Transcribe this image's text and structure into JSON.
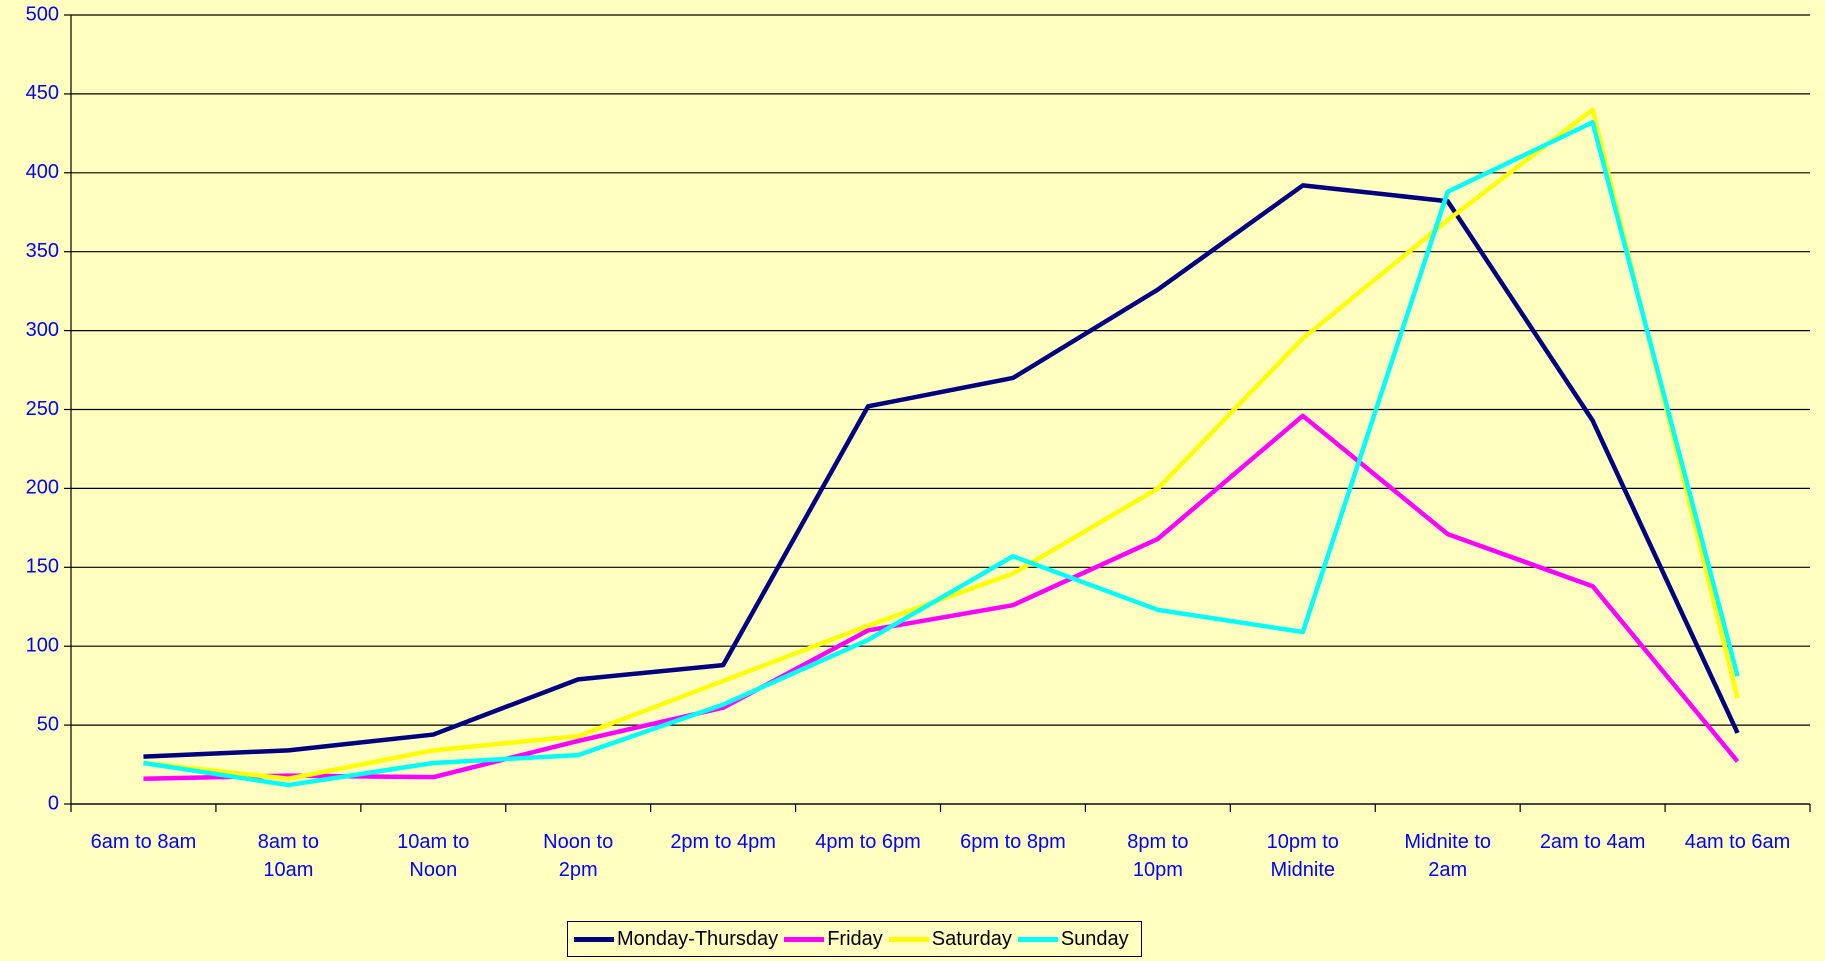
{
  "chart_data": {
    "type": "line",
    "categories": [
      "6am to 8am",
      "8am to\n10am",
      "10am to\nNoon",
      "Noon to\n2pm",
      "2pm to 4pm",
      "4pm to 6pm",
      "6pm to 8pm",
      "8pm to\n10pm",
      "10pm to\nMidnite",
      "Midnite to\n2am",
      "2am to 4am",
      "4am to 6am"
    ],
    "series": [
      {
        "name": "Monday-Thursday",
        "color": "#000080",
        "values": [
          30,
          34,
          44,
          79,
          88,
          252,
          270,
          326,
          392,
          382,
          243,
          45
        ]
      },
      {
        "name": "Friday",
        "color": "#FF00FF",
        "values": [
          16,
          18,
          17,
          40,
          61,
          110,
          126,
          168,
          246,
          171,
          138,
          27
        ]
      },
      {
        "name": "Saturday",
        "color": "#FFFF00",
        "values": [
          26,
          16,
          34,
          43,
          78,
          113,
          146,
          200,
          295,
          370,
          440,
          67
        ]
      },
      {
        "name": "Sunday",
        "color": "#00FFFF",
        "values": [
          26,
          12,
          26,
          31,
          63,
          104,
          157,
          123,
          109,
          388,
          432,
          81
        ]
      }
    ],
    "ylim": [
      0,
      500
    ],
    "yticks": [
      0,
      50,
      100,
      150,
      200,
      250,
      300,
      350,
      400,
      450,
      500
    ],
    "grid": true,
    "legend": "bottom"
  }
}
